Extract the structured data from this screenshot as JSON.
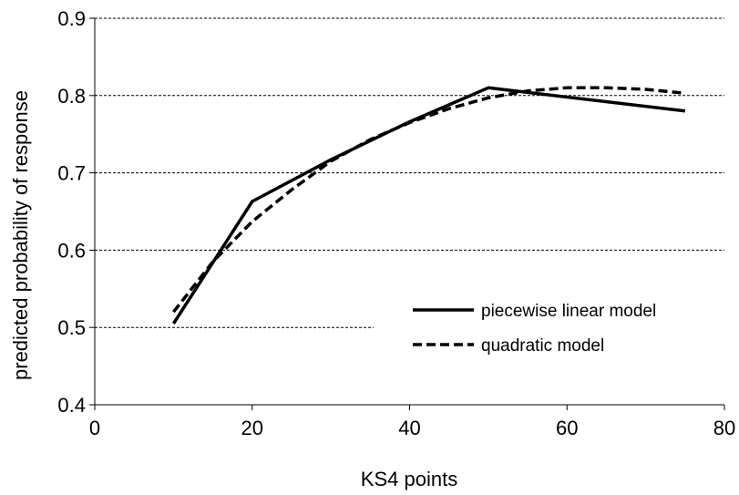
{
  "chart_data": {
    "type": "line",
    "title": "",
    "xlabel": "KS4 points",
    "ylabel": "predicted probability of response",
    "xlim": [
      0,
      80
    ],
    "ylim": [
      0.4,
      0.9
    ],
    "x_ticks": [
      0,
      20,
      40,
      60,
      80
    ],
    "y_ticks": [
      0.4,
      0.5,
      0.6,
      0.7,
      0.8,
      0.9
    ],
    "x_tick_labels": [
      "0",
      "20",
      "40",
      "60",
      "80"
    ],
    "y_tick_labels": [
      "0.4",
      "0.5",
      "0.6",
      "0.7",
      "0.8",
      "0.9"
    ],
    "grid": "horizontal dashed",
    "legend_position": "right",
    "series": [
      {
        "name": "piecewise linear model",
        "style": "solid",
        "color": "#000000",
        "x": [
          10,
          20,
          30,
          40,
          50,
          75
        ],
        "y": [
          0.505,
          0.663,
          0.717,
          0.766,
          0.81,
          0.78
        ]
      },
      {
        "name": "quadratic model",
        "style": "dashed",
        "color": "#000000",
        "x": [
          10,
          15,
          20,
          25,
          30,
          35,
          40,
          45,
          50,
          55,
          60,
          65,
          70,
          75
        ],
        "y": [
          0.52,
          0.585,
          0.637,
          0.678,
          0.715,
          0.743,
          0.765,
          0.783,
          0.797,
          0.806,
          0.81,
          0.81,
          0.808,
          0.803
        ]
      }
    ]
  }
}
